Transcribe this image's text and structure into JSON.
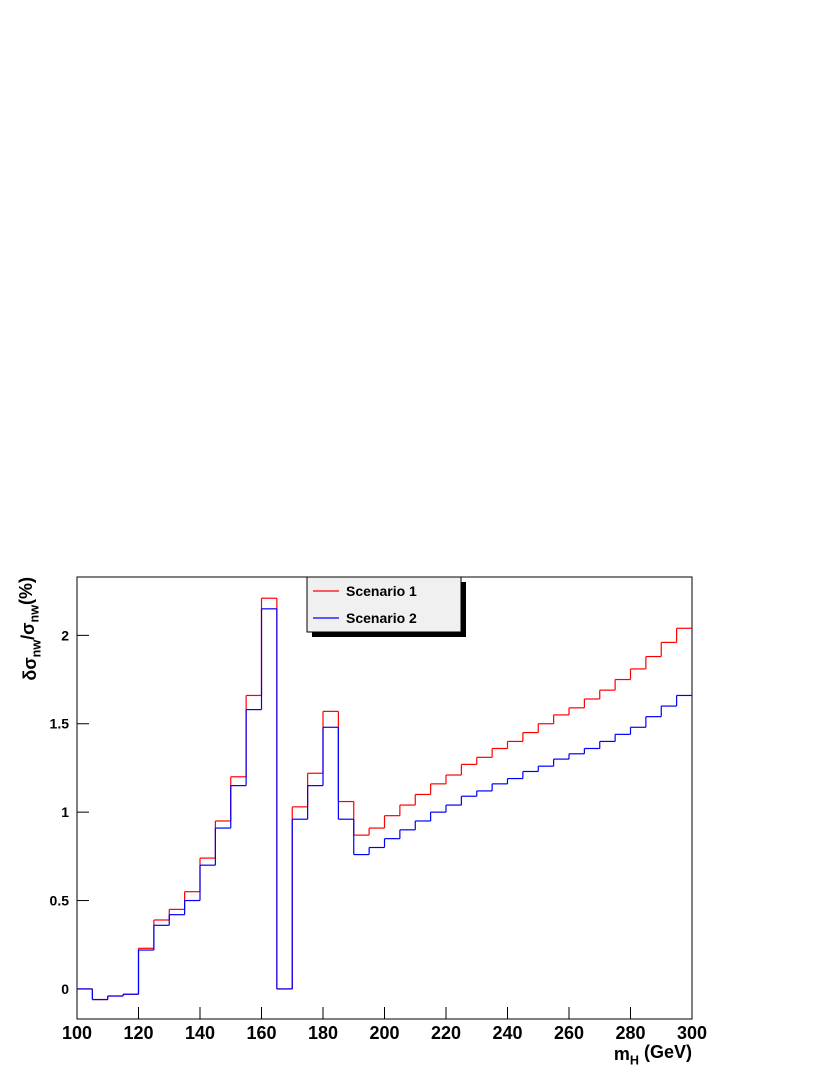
{
  "chart_data": {
    "type": "histogram",
    "xlabel": [
      "m",
      "H",
      " (GeV)"
    ],
    "ylabel": [
      "δσ",
      "nw",
      "/σ",
      "nw",
      "(%)"
    ],
    "bins": [
      100,
      105,
      110,
      115,
      120,
      125,
      130,
      135,
      140,
      145,
      150,
      155,
      160,
      165,
      170,
      175,
      180,
      185,
      190,
      195,
      200,
      205,
      210,
      215,
      220,
      225,
      230,
      235,
      240,
      245,
      250,
      255,
      260,
      265,
      270,
      275,
      280,
      285,
      290,
      295,
      300
    ],
    "series": [
      {
        "name": "Scenario 1",
        "color": "#ff0000",
        "values": [
          0,
          -0.06,
          -0.04,
          -0.03,
          0.23,
          0.39,
          0.45,
          0.55,
          0.74,
          0.95,
          1.2,
          1.66,
          2.21,
          0,
          1.03,
          1.22,
          1.57,
          1.06,
          0.87,
          0.91,
          0.98,
          1.04,
          1.1,
          1.16,
          1.21,
          1.27,
          1.31,
          1.36,
          1.4,
          1.45,
          1.5,
          1.55,
          1.59,
          1.64,
          1.69,
          1.75,
          1.81,
          1.88,
          1.96,
          2.04
        ]
      },
      {
        "name": "Scenario 2",
        "color": "#0000ff",
        "values": [
          0,
          -0.06,
          -0.04,
          -0.03,
          0.22,
          0.36,
          0.42,
          0.5,
          0.7,
          0.91,
          1.15,
          1.58,
          2.15,
          0,
          0.96,
          1.15,
          1.48,
          0.96,
          0.76,
          0.8,
          0.85,
          0.9,
          0.95,
          1.0,
          1.04,
          1.09,
          1.12,
          1.16,
          1.19,
          1.23,
          1.26,
          1.3,
          1.33,
          1.36,
          1.4,
          1.44,
          1.48,
          1.54,
          1.6,
          1.66
        ]
      }
    ],
    "xlim": [
      100,
      300
    ],
    "xticks": [
      100,
      120,
      140,
      160,
      180,
      200,
      220,
      240,
      260,
      280,
      300
    ],
    "ylim": [
      -0.17,
      2.33
    ],
    "yticks": [
      0,
      0.5,
      1,
      1.5,
      2
    ],
    "legend": "top-center"
  }
}
